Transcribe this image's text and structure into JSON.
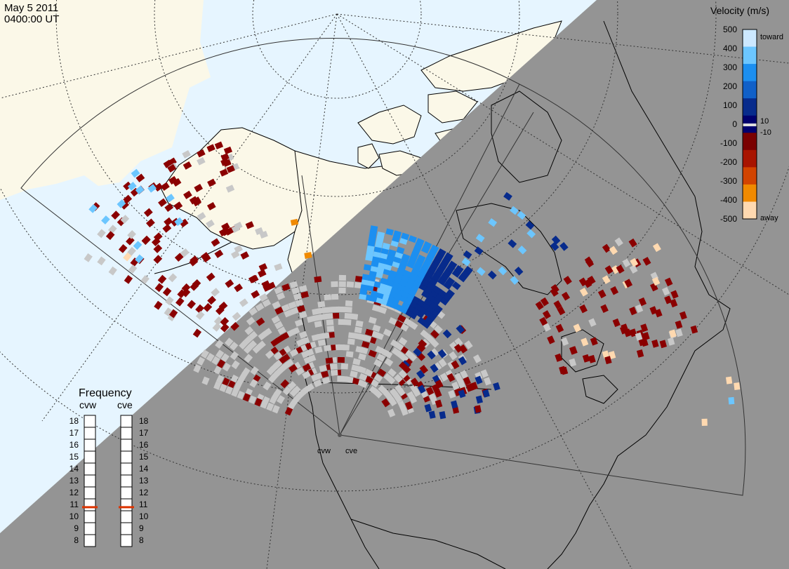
{
  "header": {
    "date": "May  5 2011",
    "time": "0400:00 UT"
  },
  "velocity_scale": {
    "title": "Velocity (m/s)",
    "ticks": [
      "500",
      "400",
      "300",
      "200",
      "100",
      "0",
      "-100",
      "-200",
      "-300",
      "-400",
      "-500"
    ],
    "small_labels": [
      "10",
      "-10"
    ],
    "toward_label": "toward",
    "away_label": "away",
    "colors": [
      "#cce8ff",
      "#6cc6ff",
      "#1c8ff0",
      "#1060c8",
      "#072b8c",
      "#00006e",
      "#7a0000",
      "#a81400",
      "#d24400",
      "#f08a00",
      "#ffd9b0"
    ]
  },
  "frequency_panel": {
    "title": "Frequency",
    "radars": [
      "cvw",
      "cve"
    ],
    "left_ticks": [
      "18",
      "17",
      "16",
      "15",
      "14",
      "13",
      "12",
      "11",
      "10",
      "9",
      "8"
    ],
    "right_ticks": [
      "18",
      "17",
      "16",
      "15",
      "14",
      "13",
      "12",
      "11",
      "10",
      "9",
      "8"
    ],
    "cvw_mhz": 10.8,
    "cve_mhz": 10.8,
    "marker_color": "#dd3300"
  },
  "map": {
    "radar_labels": [
      "cvw",
      "cve"
    ],
    "night_color": "#949494",
    "ocean_color": "#e6f5ff",
    "land_color": "#fbf8e8",
    "ground_scatter_color": "#c8c8c8"
  }
}
